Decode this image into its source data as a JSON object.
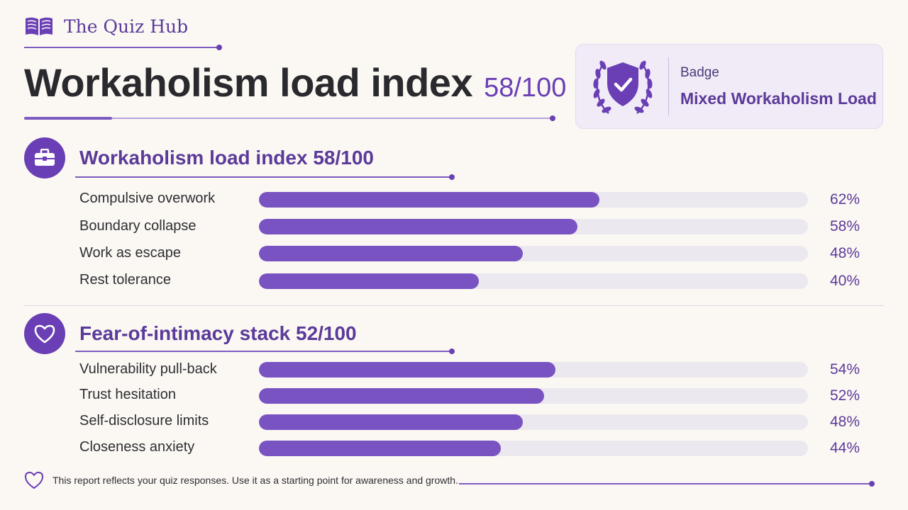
{
  "brand": {
    "name": "The Quiz Hub",
    "icon": "open-book-icon"
  },
  "header": {
    "title": "Workaholism load index",
    "score": "58/100"
  },
  "badge": {
    "label": "Badge",
    "value": "Mixed Workaholism Load",
    "icon": "shield-check-laurel-icon"
  },
  "sections": [
    {
      "icon": "briefcase-icon",
      "title": "Workaholism load index 58/100",
      "metrics": [
        {
          "label": "Compulsive overwork",
          "value": 62,
          "display": "62%"
        },
        {
          "label": "Boundary collapse",
          "value": 58,
          "display": "58%"
        },
        {
          "label": "Work as escape",
          "value": 48,
          "display": "48%"
        },
        {
          "label": "Rest tolerance",
          "value": 40,
          "display": "40%"
        }
      ]
    },
    {
      "icon": "heart-icon",
      "title": "Fear-of-intimacy stack 52/100",
      "metrics": [
        {
          "label": "Vulnerability pull-back",
          "value": 54,
          "display": "54%"
        },
        {
          "label": "Trust hesitation",
          "value": 52,
          "display": "52%"
        },
        {
          "label": "Self-disclosure limits",
          "value": 48,
          "display": "48%"
        },
        {
          "label": "Closeness anxiety",
          "value": 44,
          "display": "44%"
        }
      ]
    }
  ],
  "footer": {
    "icon": "heart-outline-icon",
    "text": "This report reflects your quiz responses. Use it as a starting point for awareness and growth."
  },
  "colors": {
    "accent": "#6a3fb5",
    "bar_fill": "#7953c2",
    "track": "#ece8ef",
    "background": "#fbf8f3"
  }
}
